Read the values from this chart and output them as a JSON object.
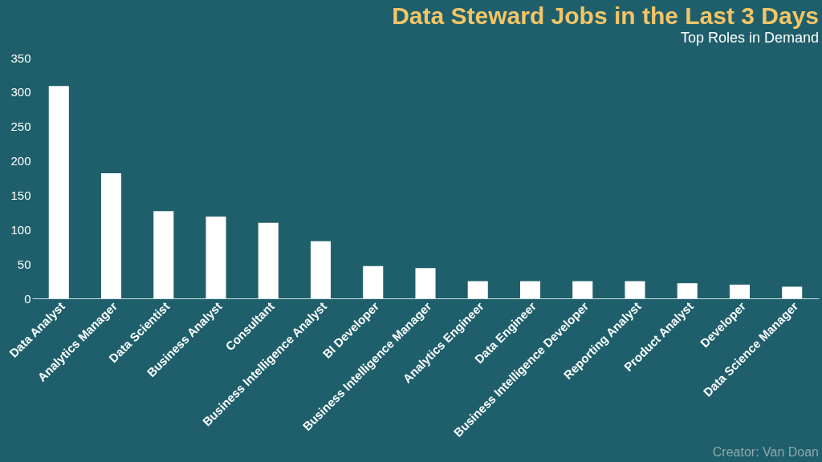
{
  "chart_data": {
    "type": "bar",
    "title": "Data Steward Jobs in the Last 3 Days",
    "subtitle": "Top Roles in Demand",
    "categories": [
      "Data Analyst",
      "Analytics Manager",
      "Data Scientist",
      "Business Analyst",
      "Consultant",
      "Business Intelligence Analyst",
      "BI Developer",
      "Business Intelligence Manager",
      "Analytics Engineer",
      "Data Engineer",
      "Business Intelligence Developer",
      "Reporting Analyst",
      "Product Analyst",
      "Developer",
      "Data Science Manager"
    ],
    "values": [
      309,
      182,
      127,
      119,
      110,
      83,
      47,
      44,
      25,
      25,
      25,
      25,
      22,
      20,
      17
    ],
    "color": "#ffffff",
    "ylim": [
      0,
      350
    ],
    "yticks": [
      0,
      50,
      100,
      150,
      200,
      250,
      300,
      350
    ],
    "grid": false,
    "annotations": [
      "Creator: Van Doan"
    ]
  }
}
